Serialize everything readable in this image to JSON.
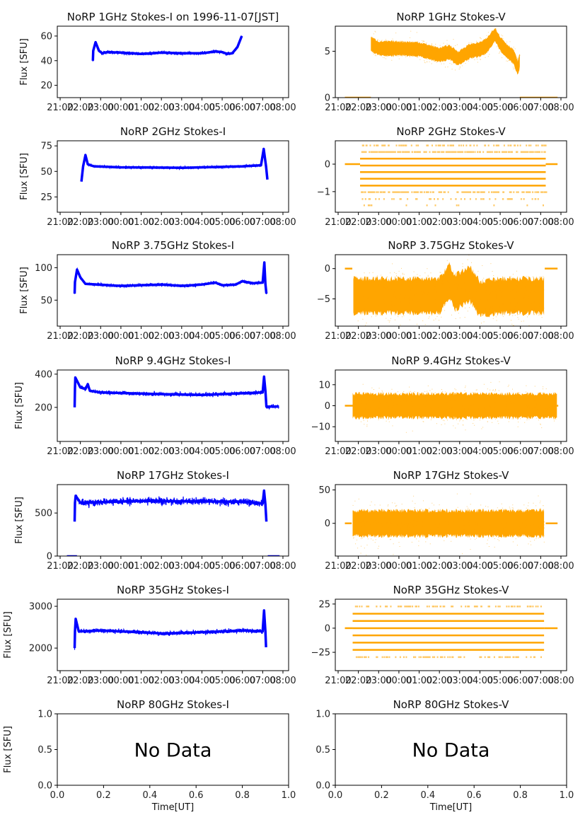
{
  "chart_data": [
    {
      "type": "line",
      "title": "NoRP 1GHz Stokes-I on 1996-11-07[JST]",
      "ylabel": "Flux [SFU]",
      "ylim": [
        10,
        68
      ],
      "yticks": [
        20,
        40,
        60
      ],
      "color": "#0000ff",
      "spread": 1.0,
      "points": [
        [
          "22:37",
          40
        ],
        [
          "22:38",
          48
        ],
        [
          "22:45",
          55
        ],
        [
          "22:55",
          48
        ],
        [
          "23:05",
          46
        ],
        [
          "23:20",
          47
        ],
        [
          "00:00",
          46.5
        ],
        [
          "01:00",
          45.5
        ],
        [
          "02:00",
          46.5
        ],
        [
          "03:00",
          46
        ],
        [
          "03:50",
          46
        ],
        [
          "04:00",
          46
        ],
        [
          "04:40",
          47.5
        ],
        [
          "05:00",
          47
        ],
        [
          "05:15",
          45.5
        ],
        [
          "05:30",
          46
        ],
        [
          "05:45",
          51
        ],
        [
          "05:58",
          60
        ]
      ],
      "zero_segments": []
    },
    {
      "type": "scatter",
      "title": "NoRP 1GHz Stokes-V",
      "ylabel": "",
      "ylim": [
        0,
        7.7
      ],
      "yticks": [
        0,
        5
      ],
      "color": "#ffa500",
      "spread": 0.8,
      "points": [
        [
          "22:37",
          5.8
        ],
        [
          "23:00",
          5.3
        ],
        [
          "00:00",
          5.3
        ],
        [
          "01:00",
          5.2
        ],
        [
          "01:30",
          4.9
        ],
        [
          "02:00",
          4.6
        ],
        [
          "02:30",
          4.9
        ],
        [
          "02:55",
          4.2
        ],
        [
          "03:30",
          5.0
        ],
        [
          "04:00",
          5.2
        ],
        [
          "04:20",
          5.6
        ],
        [
          "04:45",
          6.8
        ],
        [
          "05:00",
          5.8
        ],
        [
          "05:20",
          5.0
        ],
        [
          "05:40",
          4.4
        ],
        [
          "05:52",
          3.2
        ],
        [
          "05:58",
          4.0
        ]
      ],
      "zero_segments": [
        [
          "21:20",
          "22:37"
        ],
        [
          "05:58",
          "07:50"
        ]
      ]
    },
    {
      "type": "line",
      "title": "NoRP 2GHz Stokes-I",
      "ylabel": "Flux [SFU]",
      "ylim": [
        10,
        80
      ],
      "yticks": [
        25,
        50,
        75
      ],
      "color": "#0000ff",
      "spread": 1.0,
      "points": [
        [
          "22:03",
          40
        ],
        [
          "22:08",
          55
        ],
        [
          "22:15",
          66
        ],
        [
          "22:22",
          57
        ],
        [
          "22:40",
          55
        ],
        [
          "00:00",
          54
        ],
        [
          "03:00",
          53.5
        ],
        [
          "06:00",
          55
        ],
        [
          "06:55",
          56
        ],
        [
          "07:03",
          72
        ],
        [
          "07:10",
          55
        ],
        [
          "07:14",
          42
        ]
      ],
      "zero_segments": []
    },
    {
      "type": "scatter",
      "title": "NoRP 2GHz Stokes-V",
      "ylabel": "",
      "ylim": [
        -1.75,
        0.85
      ],
      "yticks": [
        -1,
        0
      ],
      "color": "#ffa500",
      "levels": [
        -1.5,
        -1.27,
        -1.02,
        -0.78,
        -0.53,
        -0.29,
        -0.05,
        0.2,
        0.44,
        0.68
      ],
      "level_density": [
        0.05,
        0.2,
        0.6,
        1,
        1,
        1,
        1,
        1,
        0.8,
        0.3
      ],
      "range": [
        "22:05",
        "07:15"
      ],
      "zero_segments": [
        [
          "21:20",
          "22:05"
        ],
        [
          "07:15",
          "07:50"
        ]
      ]
    },
    {
      "type": "line",
      "title": "NoRP 3.75GHz Stokes-I",
      "ylabel": "Flux [SFU]",
      "ylim": [
        10,
        120
      ],
      "yticks": [
        50,
        100
      ],
      "color": "#0000ff",
      "spread": 2.0,
      "points": [
        [
          "21:43",
          60
        ],
        [
          "21:44",
          78
        ],
        [
          "21:50",
          97
        ],
        [
          "22:00",
          85
        ],
        [
          "22:15",
          75
        ],
        [
          "00:00",
          72
        ],
        [
          "02:00",
          74
        ],
        [
          "03:00",
          72
        ],
        [
          "04:00",
          74
        ],
        [
          "04:40",
          77
        ],
        [
          "05:00",
          73
        ],
        [
          "05:40",
          74
        ],
        [
          "06:00",
          79
        ],
        [
          "06:30",
          76
        ],
        [
          "07:00",
          77
        ],
        [
          "07:05",
          108
        ],
        [
          "07:08",
          75
        ],
        [
          "07:11",
          60
        ]
      ],
      "zero_segments": []
    },
    {
      "type": "scatter",
      "title": "NoRP 3.75GHz Stokes-V",
      "ylabel": "",
      "ylim": [
        -9.5,
        2.3
      ],
      "yticks": [
        -5,
        0
      ],
      "color": "#ffa500",
      "spread": 3.0,
      "points": [
        [
          "21:45",
          -4.5
        ],
        [
          "02:00",
          -4.5
        ],
        [
          "02:30",
          -2
        ],
        [
          "02:45",
          -4
        ],
        [
          "03:30",
          -2.5
        ],
        [
          "04:00",
          -5
        ],
        [
          "05:00",
          -4.5
        ],
        [
          "07:10",
          -4.5
        ]
      ],
      "zero_segments": [
        [
          "21:20",
          "21:42"
        ],
        [
          "07:12",
          "07:50"
        ]
      ]
    },
    {
      "type": "line",
      "title": "NoRP 9.4GHz Stokes-I",
      "ylabel": "Flux [SFU]",
      "ylim": [
        -5,
        425
      ],
      "yticks": [
        200,
        400
      ],
      "color": "#0000ff",
      "spread": 10,
      "points": [
        [
          "21:43",
          200
        ],
        [
          "21:44",
          320
        ],
        [
          "21:45",
          380
        ],
        [
          "22:00",
          320
        ],
        [
          "22:15",
          310
        ],
        [
          "22:22",
          340
        ],
        [
          "22:28",
          300
        ],
        [
          "23:00",
          290
        ],
        [
          "02:00",
          280
        ],
        [
          "04:00",
          275
        ],
        [
          "06:00",
          285
        ],
        [
          "07:00",
          290
        ],
        [
          "07:04",
          385
        ],
        [
          "07:08",
          300
        ],
        [
          "07:11",
          205
        ],
        [
          "07:48",
          205
        ]
      ],
      "zero_segments": []
    },
    {
      "type": "scatter",
      "title": "NoRP 9.4GHz Stokes-V",
      "ylabel": "",
      "ylim": [
        -17,
        17
      ],
      "yticks": [
        -10,
        0,
        10
      ],
      "color": "#ffa500",
      "spread": 6,
      "points": [
        [
          "21:43",
          0
        ],
        [
          "07:48",
          0
        ]
      ],
      "zero_segments": [
        [
          "21:20",
          "21:43"
        ],
        [
          "07:48",
          "07:52"
        ]
      ]
    },
    {
      "type": "line",
      "title": "NoRP 17GHz Stokes-I",
      "ylabel": "Flux [SFU]",
      "ylim": [
        0,
        830
      ],
      "yticks": [
        0,
        500
      ],
      "color": "#0000ff",
      "spread": 35,
      "points": [
        [
          "21:43",
          400
        ],
        [
          "21:44",
          620
        ],
        [
          "21:46",
          700
        ],
        [
          "22:00",
          620
        ],
        [
          "01:00",
          640
        ],
        [
          "06:00",
          630
        ],
        [
          "07:00",
          610
        ],
        [
          "07:04",
          760
        ],
        [
          "07:08",
          600
        ],
        [
          "07:11",
          400
        ]
      ],
      "zero_segments": [
        [
          "21:20",
          "21:50"
        ],
        [
          "07:15",
          "07:50"
        ]
      ]
    },
    {
      "type": "scatter",
      "title": "NoRP 17GHz Stokes-V",
      "ylabel": "",
      "ylim": [
        -49,
        58
      ],
      "yticks": [
        0,
        50
      ],
      "color": "#ffa500",
      "spread": 20,
      "points": [
        [
          "21:43",
          0
        ],
        [
          "07:10",
          0
        ]
      ],
      "zero_segments": [
        [
          "21:20",
          "21:40"
        ],
        [
          "07:15",
          "07:50"
        ]
      ]
    },
    {
      "type": "line",
      "title": "NoRP 35GHz Stokes-I",
      "ylabel": "Flux [SFU]",
      "ylim": [
        1460,
        3170
      ],
      "yticks": [
        2000,
        3000
      ],
      "color": "#0000ff",
      "spread": 45,
      "points": [
        [
          "21:43",
          2000
        ],
        [
          "21:44",
          2400
        ],
        [
          "21:46",
          2700
        ],
        [
          "21:55",
          2400
        ],
        [
          "23:00",
          2420
        ],
        [
          "01:00",
          2380
        ],
        [
          "02:00",
          2350
        ],
        [
          "03:00",
          2360
        ],
        [
          "05:00",
          2400
        ],
        [
          "06:00",
          2420
        ],
        [
          "07:00",
          2400
        ],
        [
          "07:04",
          2900
        ],
        [
          "07:08",
          2400
        ],
        [
          "07:10",
          2020
        ]
      ],
      "zero_segments": []
    },
    {
      "type": "scatter",
      "title": "NoRP 35GHz Stokes-V",
      "ylabel": "",
      "ylim": [
        -44,
        30
      ],
      "yticks": [
        -25,
        0,
        25
      ],
      "color": "#ffa500",
      "levels": [
        -30,
        -22.5,
        -15,
        -7.5,
        0,
        7.5,
        15,
        22.5
      ],
      "level_density": [
        0.3,
        1,
        1,
        1,
        1,
        1,
        1,
        0.3
      ],
      "range": [
        "21:43",
        "07:10"
      ],
      "zero_segments": [
        [
          "21:20",
          "21:43"
        ],
        [
          "07:10",
          "07:50"
        ]
      ]
    },
    {
      "type": "empty",
      "title": "NoRP 80GHz Stokes-I",
      "ylabel": "Flux [SFU]",
      "xlabel": "Time[UT]",
      "annotation": "No Data",
      "xlim": [
        0,
        1
      ],
      "ylim": [
        0,
        1
      ],
      "xticks": [
        "0.0",
        "0.2",
        "0.4",
        "0.6",
        "0.8",
        "1.0"
      ],
      "yticks": [
        "0.0",
        "0.5",
        "1.0"
      ]
    },
    {
      "type": "empty",
      "title": "NoRP 80GHz Stokes-V",
      "ylabel": "",
      "xlabel": "Time[UT]",
      "annotation": "No Data",
      "xlim": [
        0,
        1
      ],
      "ylim": [
        0,
        1
      ],
      "xticks": [
        "0.0",
        "0.2",
        "0.4",
        "0.6",
        "0.8",
        "1.0"
      ],
      "yticks": [
        "0.0",
        "0.5",
        "1.0"
      ]
    }
  ],
  "time_ticks": [
    "21:00",
    "22:00",
    "23:00",
    "00:00",
    "01:00",
    "02:00",
    "03:00",
    "04:00",
    "05:00",
    "06:00",
    "07:00",
    "08:00"
  ]
}
